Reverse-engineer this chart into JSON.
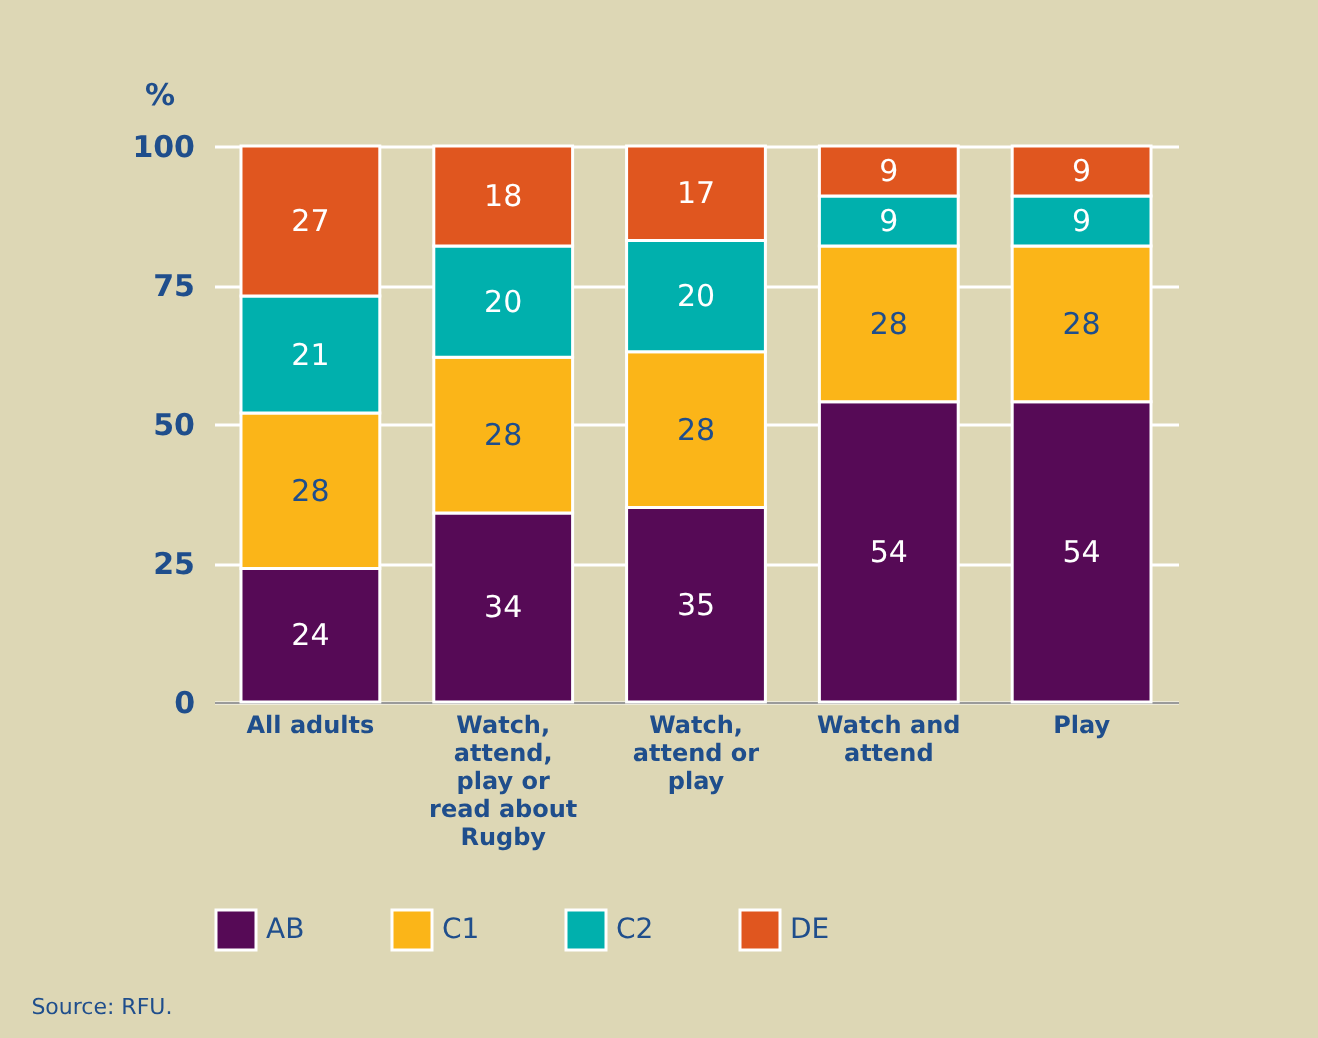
{
  "chart_data": {
    "type": "bar",
    "stacked": true,
    "ylabel": "%",
    "categories": [
      "All adults",
      "Watch, attend, play or read about Rugby",
      "Watch, attend or play",
      "Watch and attend",
      "Play"
    ],
    "series": [
      {
        "name": "AB",
        "color": "#560a56",
        "values": [
          24,
          34,
          35,
          54,
          54
        ]
      },
      {
        "name": "C1",
        "color": "#fbb518",
        "values": [
          28,
          28,
          28,
          28,
          28
        ]
      },
      {
        "name": "C2",
        "color": "#00b0ad",
        "values": [
          21,
          20,
          20,
          9,
          9
        ]
      },
      {
        "name": "DE",
        "color": "#e0561f",
        "values": [
          27,
          18,
          17,
          9,
          9
        ]
      }
    ],
    "ylim": [
      0,
      100
    ],
    "yticks": [
      0,
      25,
      50,
      75,
      100
    ],
    "grid": "y",
    "legend": "bottom",
    "data_labels": true,
    "annotations": [
      "Source: RFU."
    ]
  }
}
